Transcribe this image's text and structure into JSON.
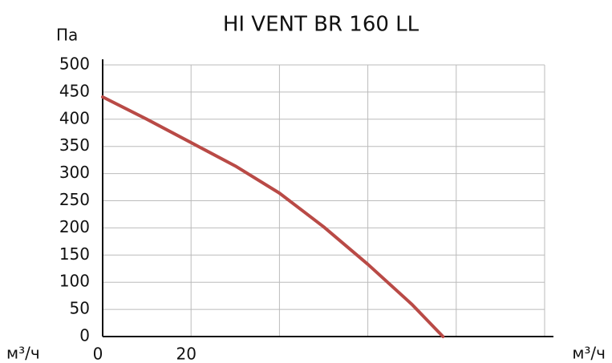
{
  "chart_data": {
    "type": "line",
    "title": "HI VENT BR 160 LL",
    "y_label": "Па",
    "x_label": "м³/ч",
    "x_label_right": "м³/ч",
    "x": [
      0,
      10,
      20,
      30,
      40,
      50,
      60,
      70,
      77
    ],
    "series": [
      {
        "name": "HI VENT BR 160 LL",
        "color": "#b94a46",
        "values": [
          441,
          400,
          357,
          314,
          264,
          202,
          133,
          59,
          0
        ]
      }
    ],
    "xlim": [
      0,
      102
    ],
    "xticks": [
      0,
      20
    ],
    "xgrid": [
      20,
      40,
      60,
      80,
      100
    ],
    "ylim": [
      0,
      500
    ],
    "yticks": [
      0,
      50,
      100,
      150,
      200,
      250,
      300,
      350,
      400,
      450,
      500
    ],
    "grid": true
  }
}
